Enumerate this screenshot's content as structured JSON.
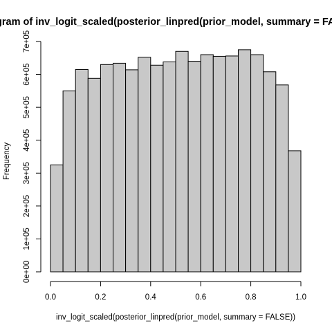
{
  "chart_data": {
    "type": "bar",
    "title": "Histogram of inv_logit_scaled(posterior_linpred(prior_model, summary = FALSE))",
    "xlabel": "inv_logit_scaled(posterior_linpred(prior_model, summary = FALSE))",
    "ylabel": "Frequency",
    "bin_edges": [
      0.0,
      0.05,
      0.1,
      0.15,
      0.2,
      0.25,
      0.3,
      0.35,
      0.4,
      0.45,
      0.5,
      0.55,
      0.6,
      0.65,
      0.7,
      0.75,
      0.8,
      0.85,
      0.9,
      0.95,
      1.0
    ],
    "values": [
      325000,
      550000,
      615000,
      588000,
      630000,
      634000,
      614000,
      652000,
      628000,
      638000,
      670000,
      640000,
      660000,
      655000,
      656000,
      675000,
      660000,
      608000,
      568000,
      368000
    ],
    "xlim": [
      0,
      1
    ],
    "ylim": [
      0,
      700000
    ],
    "x_ticks": [
      0,
      0.2,
      0.4,
      0.6,
      0.8,
      1
    ],
    "x_tick_labels": [
      "0.0",
      "0.2",
      "0.4",
      "0.6",
      "0.8",
      "1.0"
    ],
    "y_ticks": [
      0,
      100000,
      200000,
      300000,
      400000,
      500000,
      600000,
      700000
    ],
    "y_tick_labels": [
      "0e+00",
      "1e+05",
      "2e+05",
      "3e+05",
      "4e+05",
      "5e+05",
      "6e+05",
      "7e+05"
    ],
    "grid": false,
    "bar_fill": "#c8c8c8",
    "bar_stroke": "#000000"
  }
}
